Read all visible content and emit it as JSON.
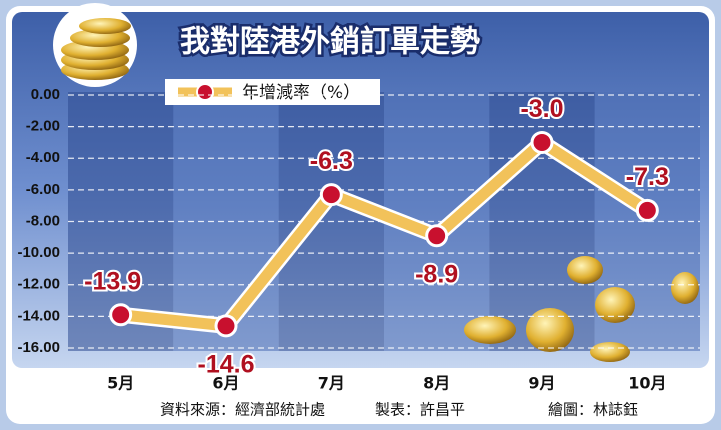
{
  "chart_data": {
    "type": "line",
    "title": "我對陸港外銷訂單走勢",
    "categories": [
      "5月",
      "6月",
      "7月",
      "8月",
      "9月",
      "10月"
    ],
    "series": [
      {
        "name": "年增減率（%）",
        "color": "#f2c25a",
        "values": [
          -13.9,
          -14.6,
          -6.3,
          -8.9,
          -3.0,
          -7.3
        ],
        "value_labels": [
          "-13.9",
          "-14.6",
          "-6.3",
          "-8.9",
          "-3.0",
          "-7.3"
        ]
      }
    ],
    "ylim": [
      -16,
      0
    ],
    "yticks": [
      {
        "value": 0,
        "label": "0.00"
      },
      {
        "value": -2,
        "label": "-2.00"
      },
      {
        "value": -4,
        "label": "-4.00"
      },
      {
        "value": -6,
        "label": "-6.00"
      },
      {
        "value": -8,
        "label": "-8.00"
      },
      {
        "value": -10,
        "label": "-10.00"
      },
      {
        "value": -12,
        "label": "-12.00"
      },
      {
        "value": -14,
        "label": "-14.00"
      },
      {
        "value": -16,
        "label": "-16.00"
      }
    ],
    "grid": true,
    "source": [
      "資料來源：經濟部統計處",
      "製表：許昌平",
      "繪圖：林誌鈺"
    ]
  }
}
